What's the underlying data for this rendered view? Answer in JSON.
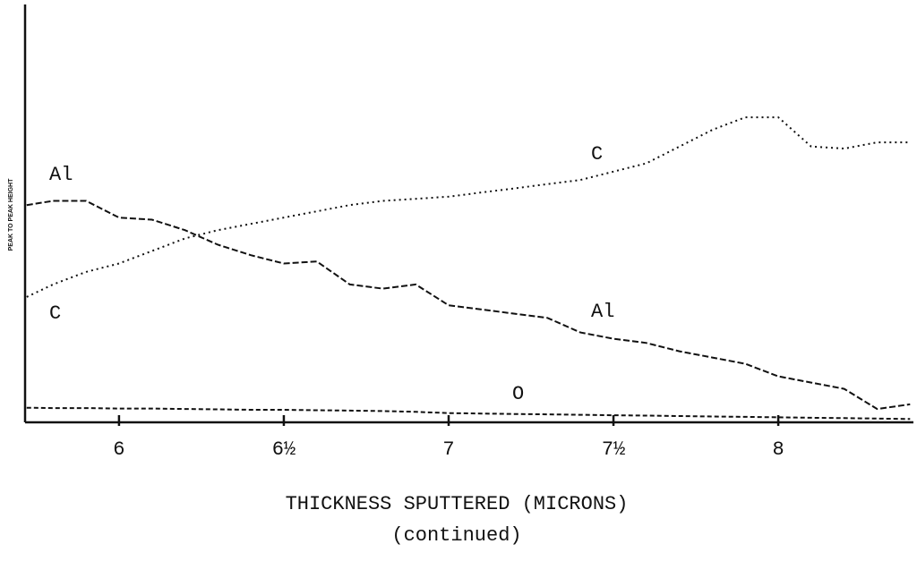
{
  "chart_data": {
    "type": "line",
    "ylabel": "PEAK TO PEAK HEIGHT",
    "xlabel": "THICKNESS SPUTTERED (MICRONS)",
    "note": "(continued)",
    "x": [
      5.72,
      5.8,
      5.9,
      6.0,
      6.1,
      6.2,
      6.3,
      6.4,
      6.5,
      6.6,
      6.7,
      6.8,
      6.9,
      7.0,
      7.1,
      7.2,
      7.3,
      7.4,
      7.5,
      7.6,
      7.7,
      7.8,
      7.9,
      8.0,
      8.1,
      8.2,
      8.3,
      8.4
    ],
    "series": [
      {
        "name": "Al",
        "color": "#111111",
        "values": [
          52,
          53,
          53,
          49,
          48.5,
          46,
          42.5,
          40,
          38,
          38.5,
          33,
          32,
          33,
          28,
          27,
          26,
          25,
          21.5,
          20,
          19,
          17,
          15.5,
          14,
          11,
          9.5,
          8,
          3.2,
          4.3
        ]
      },
      {
        "name": "C",
        "color": "#111111",
        "values": [
          30,
          33,
          36,
          38,
          41,
          44,
          46,
          47.5,
          49,
          50.5,
          52,
          53,
          53.5,
          54,
          55,
          56,
          57,
          58,
          60,
          62,
          66,
          70,
          73,
          73,
          66,
          65.5,
          67,
          67
        ]
      },
      {
        "name": "O",
        "color": "#111111",
        "values": [
          3.5,
          3.4,
          3.4,
          3.3,
          3.3,
          3.2,
          3.1,
          3.0,
          3.0,
          2.9,
          2.8,
          2.7,
          2.5,
          2.2,
          2.1,
          2.0,
          1.9,
          1.8,
          1.7,
          1.6,
          1.5,
          1.4,
          1.3,
          1.2,
          1.1,
          1.0,
          0.9,
          0.8
        ]
      }
    ],
    "xlim": [
      5.715,
      8.41
    ],
    "ylim": [
      0,
      100
    ],
    "xticks": [
      6,
      {
        "value": 6.5,
        "label": "6½"
      },
      7,
      {
        "value": 7.5,
        "label": "7½"
      },
      8
    ]
  }
}
